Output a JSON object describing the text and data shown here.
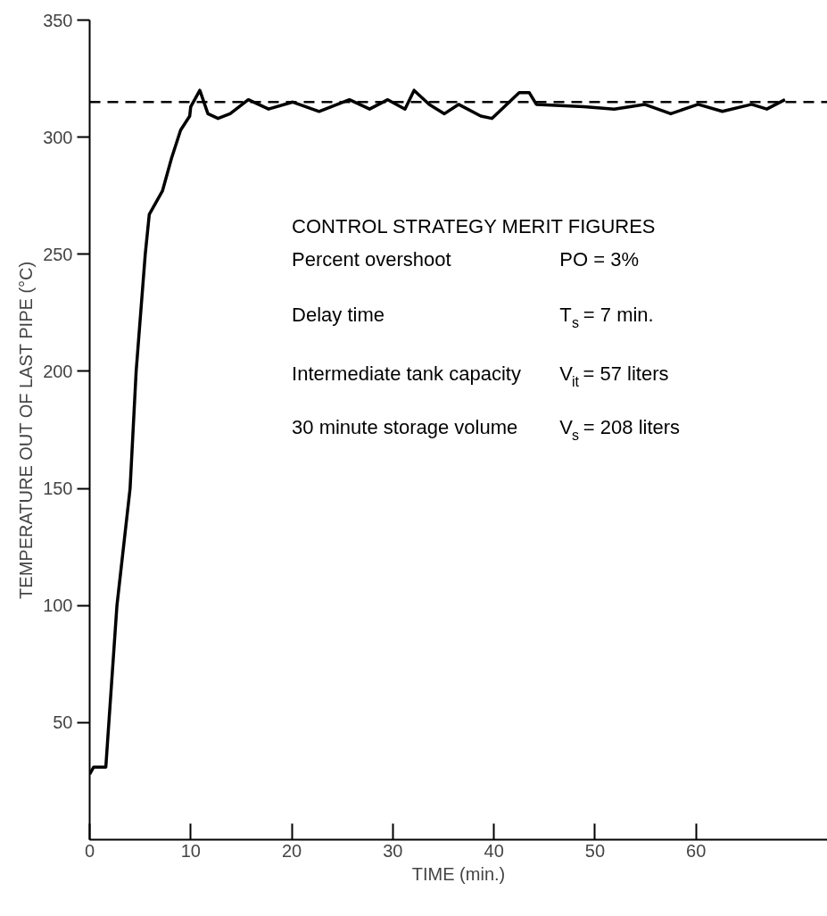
{
  "chart_data": {
    "type": "line",
    "xlabel": "TIME (min.)",
    "ylabel": "TEMPERATURE OUT OF LAST PIPE (°C)",
    "xlim": [
      0,
      73
    ],
    "ylim": [
      0,
      350
    ],
    "xticks": [
      0,
      10,
      20,
      30,
      40,
      50,
      60
    ],
    "yticks": [
      50,
      100,
      150,
      200,
      250,
      300,
      350
    ],
    "grid": false,
    "marker": "none",
    "line_style": "solid",
    "series": [
      {
        "color": "#000000",
        "x": [
          0,
          0.4,
          1.6,
          1.9,
          2.7,
          4.0,
          4.6,
          5.5,
          5.9,
          7.2,
          8.1,
          9.0,
          9.9,
          10.0,
          10.9,
          11.7,
          12.7,
          13.9,
          15.7,
          17.7,
          20.1,
          22.7,
          25.7,
          27.7,
          29.5,
          31.2,
          32.1,
          33.6,
          35.1,
          36.5,
          38.7,
          39.8,
          42.5,
          43.5,
          44.2,
          48.9,
          51.9,
          54.9,
          57.5,
          60.2,
          62.6,
          65.5,
          67.0,
          68.8
        ],
        "values": [
          28,
          31,
          31,
          50,
          100,
          150,
          200,
          250,
          267,
          277,
          291,
          303,
          309,
          313,
          320,
          310,
          308,
          310,
          316,
          312,
          315,
          311,
          316,
          312,
          316,
          312,
          320,
          314,
          310,
          314,
          309,
          308,
          319,
          319,
          314,
          313,
          312,
          314,
          310,
          314,
          311,
          314,
          312,
          316
        ]
      }
    ],
    "ref_lines": [
      {
        "axis": "y",
        "value": 315,
        "color": "#000000",
        "line_style": "dashed"
      }
    ],
    "annotations": [
      "CONTROL STRATEGY MERIT FIGURES",
      "Percent overshoot",
      "PO = 3%",
      "Delay time",
      "T$_{s}$ = 7 min.",
      "Intermediate tank capacity",
      "V$_{it}$ = 57 liters",
      "30 minute storage volume",
      "V$_{s}$ = 208 liters"
    ]
  }
}
